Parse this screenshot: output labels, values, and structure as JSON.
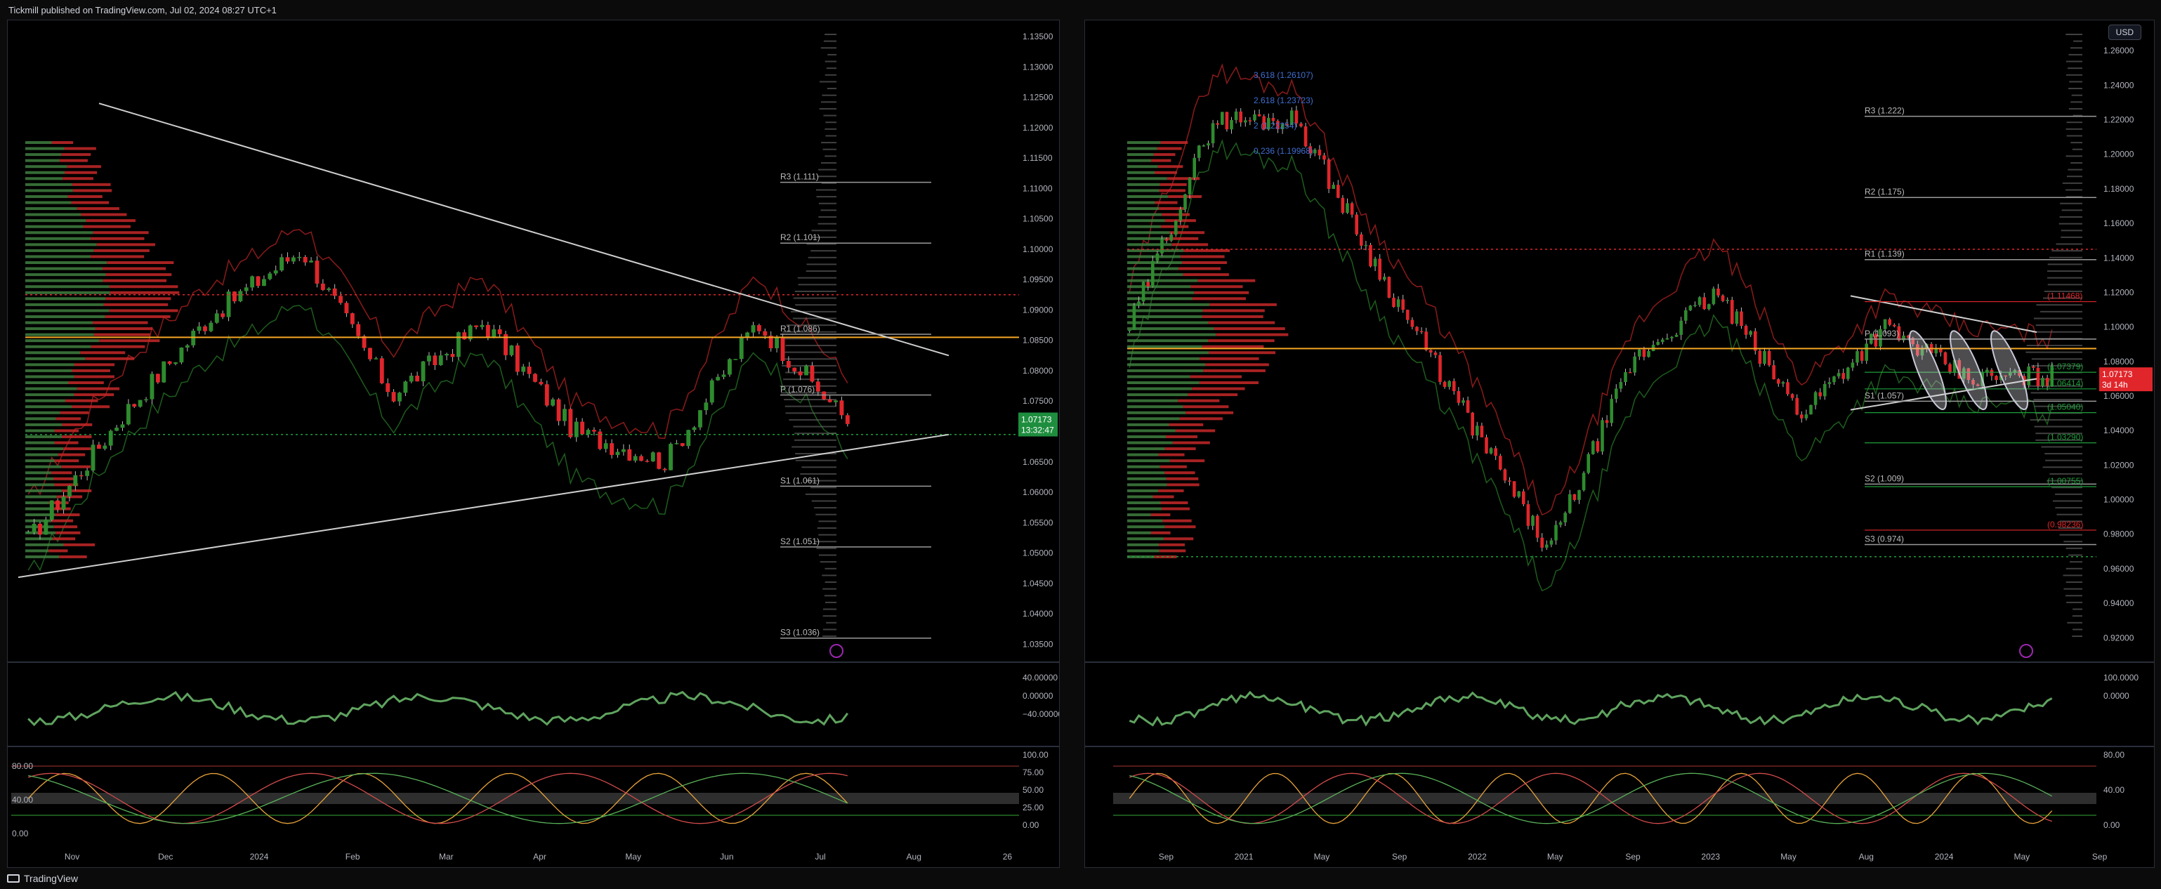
{
  "header": {
    "published": "Tickmill published on TradingView.com, Jul 02, 2024 08:27 UTC+1"
  },
  "footer": {
    "brand": "TradingView"
  },
  "colors": {
    "bull": "#2e8b2e",
    "bear": "#e0262b",
    "level_line": "#9a9a9a",
    "poc": "#f5a623",
    "purple": "#9c27b0",
    "accent_green": "#1e9e3a"
  },
  "chart_data": [
    {
      "type": "line",
      "panel": "left",
      "title": "",
      "y_ticks": [
        "1.13500",
        "1.13000",
        "1.12500",
        "1.12000",
        "1.11500",
        "1.11000",
        "1.10500",
        "1.10000",
        "1.09500",
        "1.09000",
        "1.08500",
        "1.08000",
        "1.07500",
        "1.07000",
        "1.06500",
        "1.06000",
        "1.05500",
        "1.05000",
        "1.04500",
        "1.04000",
        "1.03500"
      ],
      "x_ticks": [
        "Nov",
        "Dec",
        "2024",
        "Feb",
        "Mar",
        "Apr",
        "May",
        "Jun",
        "Jul",
        "Aug",
        "26"
      ],
      "ylim": [
        1.0325,
        1.1365
      ],
      "last_price": {
        "value": "1.07173",
        "timer": "13:32:47"
      },
      "series": [
        {
          "name": "",
          "x": [
            "Oct",
            "Nov",
            "Dec",
            "2024",
            "Feb",
            "Mar",
            "Apr",
            "May",
            "Jun",
            "Jul"
          ],
          "values": [
            1.052,
            1.072,
            1.089,
            1.1,
            1.076,
            1.088,
            1.07,
            1.065,
            1.088,
            1.0717
          ]
        }
      ],
      "pivot_levels": [
        {
          "label": "R3 (1.111)",
          "value": 1.111
        },
        {
          "label": "R2 (1.101)",
          "value": 1.101
        },
        {
          "label": "R1 (1.086)",
          "value": 1.086
        },
        {
          "label": "P (1.076)",
          "value": 1.076
        },
        {
          "label": "S1 (1.061)",
          "value": 1.061
        },
        {
          "label": "S2 (1.051)",
          "value": 1.051
        },
        {
          "label": "S3 (1.036)",
          "value": 1.036
        }
      ],
      "oscillator_ticks": [
        "40.00000",
        "0.00000",
        "−40.00000"
      ],
      "stoch_ticks": [
        "100.00",
        "75.00",
        "50.00",
        "25.00",
        "0.00"
      ],
      "stoch_left_ticks": [
        "80.00",
        "40.00",
        "0.00"
      ]
    },
    {
      "type": "line",
      "panel": "right",
      "title": "",
      "currency": "USD",
      "y_ticks": [
        "1.26000",
        "1.24000",
        "1.22000",
        "1.20000",
        "1.18000",
        "1.16000",
        "1.14000",
        "1.12000",
        "1.10000",
        "1.08000",
        "1.06000",
        "1.04000",
        "1.02000",
        "1.00000",
        "0.98000",
        "0.96000",
        "0.94000",
        "0.92000"
      ],
      "x_ticks": [
        "Sep",
        "2021",
        "May",
        "Sep",
        "2022",
        "May",
        "Sep",
        "2023",
        "May",
        "Aug",
        "2024",
        "May",
        "Sep"
      ],
      "ylim": [
        0.9075,
        1.2735
      ],
      "last_price": {
        "value": "1.07173",
        "timer": "3d 14h"
      },
      "series": [
        {
          "name": "",
          "x": [
            "2020-08",
            "2021-01",
            "2021-06",
            "2022-01",
            "2022-06",
            "2022-09",
            "2023-01",
            "2023-07",
            "2023-10",
            "2024-01",
            "2024-04",
            "2024-06"
          ],
          "values": [
            1.1,
            1.22,
            1.22,
            1.13,
            1.05,
            0.97,
            1.08,
            1.12,
            1.05,
            1.1,
            1.07,
            1.0717
          ]
        }
      ],
      "pivot_levels": [
        {
          "label": "R3 (1.222)",
          "value": 1.222
        },
        {
          "label": "R2 (1.175)",
          "value": 1.175
        },
        {
          "label": "R1 (1.139)",
          "value": 1.139
        },
        {
          "label": "P (1.093)",
          "value": 1.093
        },
        {
          "label": "S1 (1.057)",
          "value": 1.057
        },
        {
          "label": "S2 (1.009)",
          "value": 1.009
        },
        {
          "label": "S3 (0.974)",
          "value": 0.974
        }
      ],
      "annotations": [
        {
          "label": "(1.11468)",
          "value": 1.11468,
          "color": "#e0262b"
        },
        {
          "label": "(1.07379)",
          "value": 1.07379,
          "color": "#1e9e3a"
        },
        {
          "label": "(1.06414)",
          "value": 1.06414,
          "color": "#1e9e3a"
        },
        {
          "label": "(1.05040)",
          "value": 1.0504,
          "color": "#1e9e3a"
        },
        {
          "label": "(1.03290)",
          "value": 1.0329,
          "color": "#1e9e3a"
        },
        {
          "label": "(1.00755)",
          "value": 1.00755,
          "color": "#1e9e3a"
        },
        {
          "label": "(0.98236)",
          "value": 0.98236,
          "color": "#e0262b"
        }
      ],
      "fib_labels": [
        "3.618 (1.26107)",
        "2.618 (1.23723)",
        "2 (1.22254)",
        "0.236 (1.19968)"
      ],
      "oscillator_ticks": [
        "100.0000",
        "0.0000"
      ],
      "stoch_ticks": [
        "80.00",
        "40.00",
        "0.00"
      ]
    }
  ]
}
